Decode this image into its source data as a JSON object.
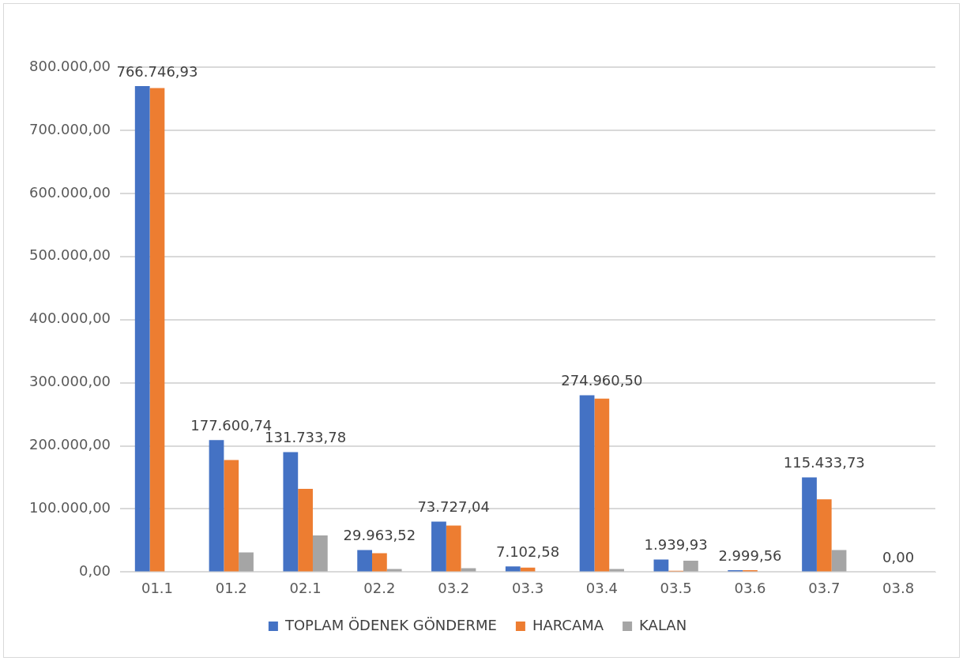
{
  "chart_data": {
    "type": "bar",
    "categories": [
      "01.1",
      "01.2",
      "02.1",
      "02.2",
      "03.2",
      "03.3",
      "03.4",
      "03.5",
      "03.6",
      "03.7",
      "03.8"
    ],
    "series": [
      {
        "name": "TOPLAM ÖDENEK GÖNDERME",
        "color": "#4472c4",
        "values": [
          770000,
          209000,
          190000,
          35000,
          80000,
          9000,
          280000,
          20000,
          3000,
          150000,
          0
        ]
      },
      {
        "name": "HARCAMA",
        "color": "#ed7d31",
        "values": [
          766746.93,
          177600.74,
          131733.78,
          29963.52,
          73727.04,
          7102.58,
          274960.5,
          1939.93,
          2999.56,
          115433.73,
          0
        ],
        "value_labels": [
          "766.746,93",
          "177.600,74",
          "131.733,78",
          "29.963,52",
          "73.727,04",
          "7.102,58",
          "274.960,50",
          "1.939,93",
          "2.999,56",
          "115.433,73",
          "0,00"
        ]
      },
      {
        "name": "KALAN",
        "color": "#a5a5a5",
        "values": [
          0,
          31000,
          58000,
          5000,
          6000,
          0,
          5000,
          18000,
          0,
          35000,
          0
        ]
      }
    ],
    "ylim": [
      0,
      800000
    ],
    "yticks": [
      {
        "value": 0,
        "label": "0,00"
      },
      {
        "value": 100000,
        "label": "100.000,00"
      },
      {
        "value": 200000,
        "label": "200.000,00"
      },
      {
        "value": 300000,
        "label": "300.000,00"
      },
      {
        "value": 400000,
        "label": "400.000,00"
      },
      {
        "value": 500000,
        "label": "500.000,00"
      },
      {
        "value": 600000,
        "label": "600.000,00"
      },
      {
        "value": 700000,
        "label": "700.000,00"
      },
      {
        "value": 800000,
        "label": "800.000,00"
      }
    ],
    "grid": "y",
    "legend": "bottom"
  }
}
